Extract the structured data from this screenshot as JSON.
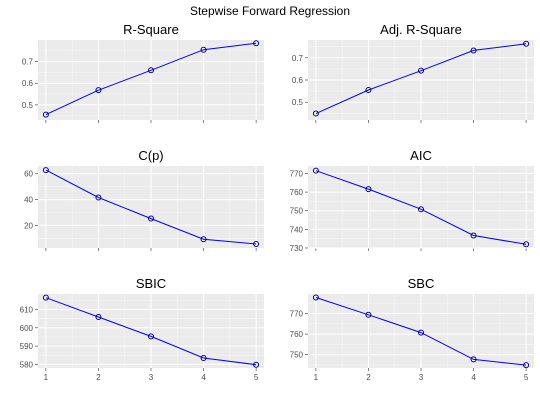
{
  "figure": {
    "title": "Stepwise Forward Regression"
  },
  "style": {
    "line_color": "#0000ff",
    "point_color": "#00008b",
    "panel_background": "#ebebeb",
    "grid_color": "#ffffff"
  },
  "chart_data": [
    {
      "type": "line",
      "title": "R-Square",
      "xlabel": "",
      "ylabel": "",
      "x": [
        1,
        2,
        3,
        4,
        5
      ],
      "values": [
        0.455,
        0.568,
        0.66,
        0.755,
        0.785
      ],
      "xlim": [
        0.85,
        5.15
      ],
      "ylim": [
        0.43,
        0.8
      ],
      "xticks": [
        1,
        2,
        3,
        4,
        5
      ],
      "yticks": [
        0.5,
        0.6,
        0.7
      ],
      "ytick_labels": [
        "0.5",
        "0.6",
        "0.7"
      ],
      "show_xtick_labels": false,
      "grid": true
    },
    {
      "type": "line",
      "title": "Adj. R-Square",
      "xlabel": "",
      "ylabel": "",
      "x": [
        1,
        2,
        3,
        4,
        5
      ],
      "values": [
        0.449,
        0.555,
        0.642,
        0.733,
        0.763
      ],
      "xlim": [
        0.85,
        5.15
      ],
      "ylim": [
        0.42,
        0.78
      ],
      "xticks": [
        1,
        2,
        3,
        4,
        5
      ],
      "yticks": [
        0.5,
        0.6,
        0.7
      ],
      "ytick_labels": [
        "0.5",
        "0.6",
        "0.7"
      ],
      "show_xtick_labels": false,
      "grid": true
    },
    {
      "type": "line",
      "title": "C(p)",
      "xlabel": "",
      "ylabel": "",
      "x": [
        1,
        2,
        3,
        4,
        5
      ],
      "values": [
        62.8,
        41.6,
        25.3,
        9.3,
        5.6
      ],
      "xlim": [
        0.85,
        5.15
      ],
      "ylim": [
        2.5,
        66
      ],
      "xticks": [
        1,
        2,
        3,
        4,
        5
      ],
      "yticks": [
        20,
        40,
        60
      ],
      "ytick_labels": [
        "20",
        "40",
        "60"
      ],
      "show_xtick_labels": false,
      "grid": true
    },
    {
      "type": "line",
      "title": "AIC",
      "xlabel": "",
      "ylabel": "",
      "x": [
        1,
        2,
        3,
        4,
        5
      ],
      "values": [
        771.5,
        761.6,
        750.8,
        736.7,
        732.0
      ],
      "xlim": [
        0.85,
        5.15
      ],
      "ylim": [
        730,
        774
      ],
      "xticks": [
        1,
        2,
        3,
        4,
        5
      ],
      "yticks": [
        730,
        740,
        750,
        760,
        770
      ],
      "ytick_labels": [
        "730",
        "740",
        "750",
        "760",
        "770"
      ],
      "show_xtick_labels": false,
      "grid": true
    },
    {
      "type": "line",
      "title": "SBIC",
      "xlabel": "",
      "ylabel": "",
      "x": [
        1,
        2,
        3,
        4,
        5
      ],
      "values": [
        616.5,
        605.9,
        595.3,
        583.5,
        579.8
      ],
      "xlim": [
        0.85,
        5.15
      ],
      "ylim": [
        578,
        618.5
      ],
      "xticks": [
        1,
        2,
        3,
        4,
        5
      ],
      "yticks": [
        580,
        590,
        600,
        610
      ],
      "ytick_labels": [
        "580",
        "590",
        "600",
        "610"
      ],
      "show_xtick_labels": true,
      "xtick_labels": [
        "1",
        "2",
        "3",
        "4",
        "5"
      ],
      "grid": true
    },
    {
      "type": "line",
      "title": "SBC",
      "xlabel": "",
      "ylabel": "",
      "x": [
        1,
        2,
        3,
        4,
        5
      ],
      "values": [
        777.8,
        769.4,
        760.7,
        747.7,
        744.9
      ],
      "xlim": [
        0.85,
        5.15
      ],
      "ylim": [
        743.5,
        779.5
      ],
      "xticks": [
        1,
        2,
        3,
        4,
        5
      ],
      "yticks": [
        750,
        760,
        770
      ],
      "ytick_labels": [
        "750",
        "760",
        "770"
      ],
      "show_xtick_labels": true,
      "xtick_labels": [
        "1",
        "2",
        "3",
        "4",
        "5"
      ],
      "grid": true
    }
  ]
}
